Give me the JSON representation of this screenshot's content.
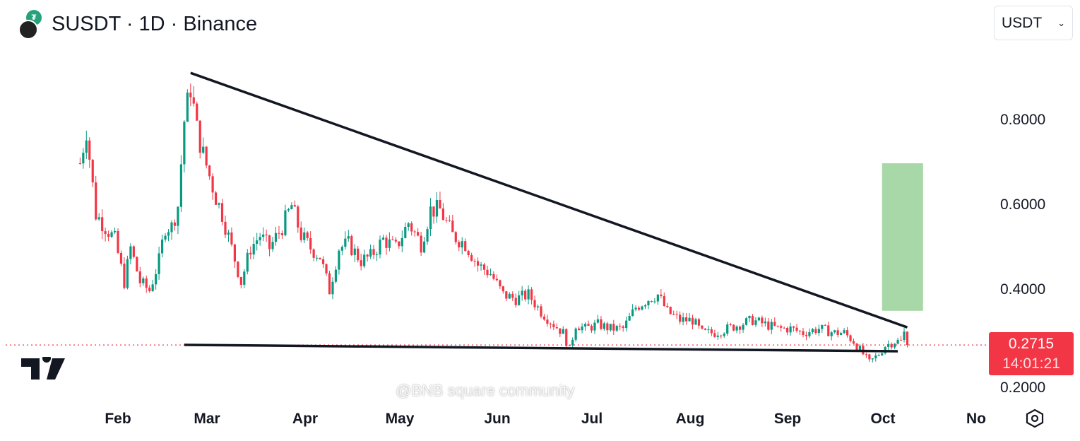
{
  "header": {
    "symbol": "SUSDT",
    "interval": "1D",
    "exchange": "Binance",
    "title": "SUSDT · 1D · Binance",
    "currency_select": "USDT"
  },
  "last_price": {
    "value": "0.2715",
    "countdown": "14:01:21",
    "color": "#f23645"
  },
  "watermark": "@BNB square community",
  "colors": {
    "up": "#089981",
    "down": "#f23645",
    "target_box": "#a9d8a8",
    "trendline": "#131722"
  },
  "chart_data": {
    "type": "candlestick",
    "yticks": [
      "0.8000",
      "0.6000",
      "0.4000",
      "0.2000"
    ],
    "ylim": [
      0.19,
      0.97
    ],
    "xticks": [
      "Feb",
      "Mar",
      "Apr",
      "May",
      "Jun",
      "Jul",
      "Aug",
      "Sep",
      "Oct",
      "No"
    ],
    "close_anchors": [
      [
        "01-20",
        0.7
      ],
      [
        "01-22",
        0.78
      ],
      [
        "01-25",
        0.58
      ],
      [
        "01-28",
        0.55
      ],
      [
        "01-31",
        0.52
      ],
      [
        "02-03",
        0.42
      ],
      [
        "02-05",
        0.5
      ],
      [
        "02-08",
        0.42
      ],
      [
        "02-11",
        0.4
      ],
      [
        "02-14",
        0.47
      ],
      [
        "02-16",
        0.55
      ],
      [
        "02-18",
        0.55
      ],
      [
        "02-20",
        0.6
      ],
      [
        "02-22",
        0.8
      ],
      [
        "02-24",
        0.88
      ],
      [
        "02-26",
        0.78
      ],
      [
        "02-28",
        0.72
      ],
      [
        "03-03",
        0.62
      ],
      [
        "03-05",
        0.58
      ],
      [
        "03-08",
        0.5
      ],
      [
        "03-11",
        0.42
      ],
      [
        "03-14",
        0.5
      ],
      [
        "03-17",
        0.53
      ],
      [
        "03-20",
        0.5
      ],
      [
        "03-24",
        0.55
      ],
      [
        "03-27",
        0.6
      ],
      [
        "03-30",
        0.53
      ],
      [
        "04-02",
        0.5
      ],
      [
        "04-05",
        0.48
      ],
      [
        "04-08",
        0.4
      ],
      [
        "04-11",
        0.5
      ],
      [
        "04-14",
        0.51
      ],
      [
        "04-18",
        0.47
      ],
      [
        "04-21",
        0.48
      ],
      [
        "04-25",
        0.52
      ],
      [
        "04-29",
        0.5
      ],
      [
        "05-03",
        0.56
      ],
      [
        "05-07",
        0.51
      ],
      [
        "05-10",
        0.59
      ],
      [
        "05-13",
        0.59
      ],
      [
        "05-17",
        0.53
      ],
      [
        "05-21",
        0.51
      ],
      [
        "05-25",
        0.46
      ],
      [
        "05-29",
        0.44
      ],
      [
        "06-02",
        0.39
      ],
      [
        "06-06",
        0.38
      ],
      [
        "06-10",
        0.39
      ],
      [
        "06-14",
        0.35
      ],
      [
        "06-18",
        0.32
      ],
      [
        "06-21",
        0.3
      ],
      [
        "06-23",
        0.26
      ],
      [
        "06-25",
        0.32
      ],
      [
        "06-28",
        0.31
      ],
      [
        "07-02",
        0.32
      ],
      [
        "07-06",
        0.31
      ],
      [
        "07-10",
        0.31
      ],
      [
        "07-14",
        0.36
      ],
      [
        "07-18",
        0.38
      ],
      [
        "07-21",
        0.39
      ],
      [
        "07-24",
        0.35
      ],
      [
        "07-28",
        0.33
      ],
      [
        "08-01",
        0.33
      ],
      [
        "08-04",
        0.3
      ],
      [
        "08-08",
        0.3
      ],
      [
        "08-12",
        0.31
      ],
      [
        "08-16",
        0.32
      ],
      [
        "08-20",
        0.33
      ],
      [
        "08-24",
        0.32
      ],
      [
        "08-28",
        0.31
      ],
      [
        "09-01",
        0.31
      ],
      [
        "09-05",
        0.3
      ],
      [
        "09-10",
        0.31
      ],
      [
        "09-15",
        0.3
      ],
      [
        "09-18",
        0.3
      ],
      [
        "09-21",
        0.28
      ],
      [
        "09-24",
        0.25
      ],
      [
        "09-26",
        0.23
      ],
      [
        "09-29",
        0.25
      ],
      [
        "10-01",
        0.27
      ],
      [
        "10-04",
        0.28
      ],
      [
        "10-06",
        0.28
      ],
      [
        "10-07",
        0.3
      ],
      [
        "10-08",
        0.2715
      ]
    ],
    "drawings": {
      "upper_trendline": [
        [
          "02-24",
          0.913
        ],
        [
          "10-08",
          0.313
        ]
      ],
      "lower_trendline": [
        [
          "02-22",
          0.2717
        ],
        [
          "10-05",
          0.2567
        ]
      ],
      "target_box": {
        "from": "09-30",
        "to": "10-13",
        "top": 0.7,
        "bottom": 0.352
      }
    }
  }
}
